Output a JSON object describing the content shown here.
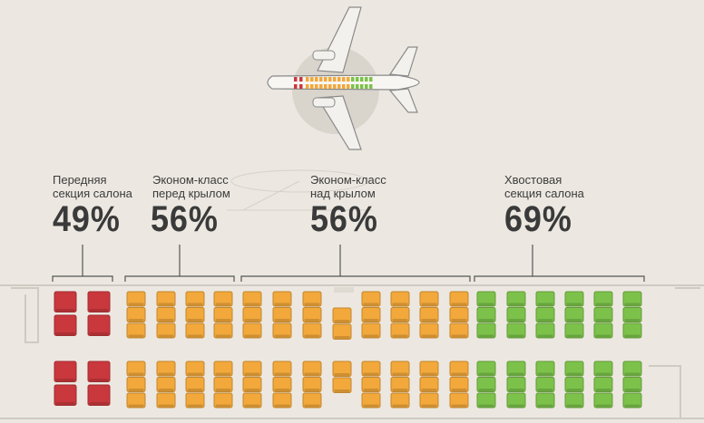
{
  "title": "",
  "colors": {
    "background": "#ece8e1",
    "front_section": "#c9383d",
    "economy_section": "#f2a83b",
    "tail_section": "#7cc24a",
    "bracket": "#555555"
  },
  "icons": [
    "airplane-icon",
    "seat-icon"
  ],
  "sections": [
    {
      "id": "front",
      "label": "Передняя\nсекция салона",
      "percent": "49%",
      "color_key": "front_section"
    },
    {
      "id": "economy-front",
      "label": "Эконом-класс\nперед крылом",
      "percent": "56%",
      "color_key": "economy_section"
    },
    {
      "id": "economy-wing",
      "label": "Эконом-класс\nнад крылом",
      "percent": "56%",
      "color_key": "economy_section"
    },
    {
      "id": "tail",
      "label": "Хвостовая\nсекция салона",
      "percent": "69%",
      "color_key": "tail_section"
    }
  ]
}
